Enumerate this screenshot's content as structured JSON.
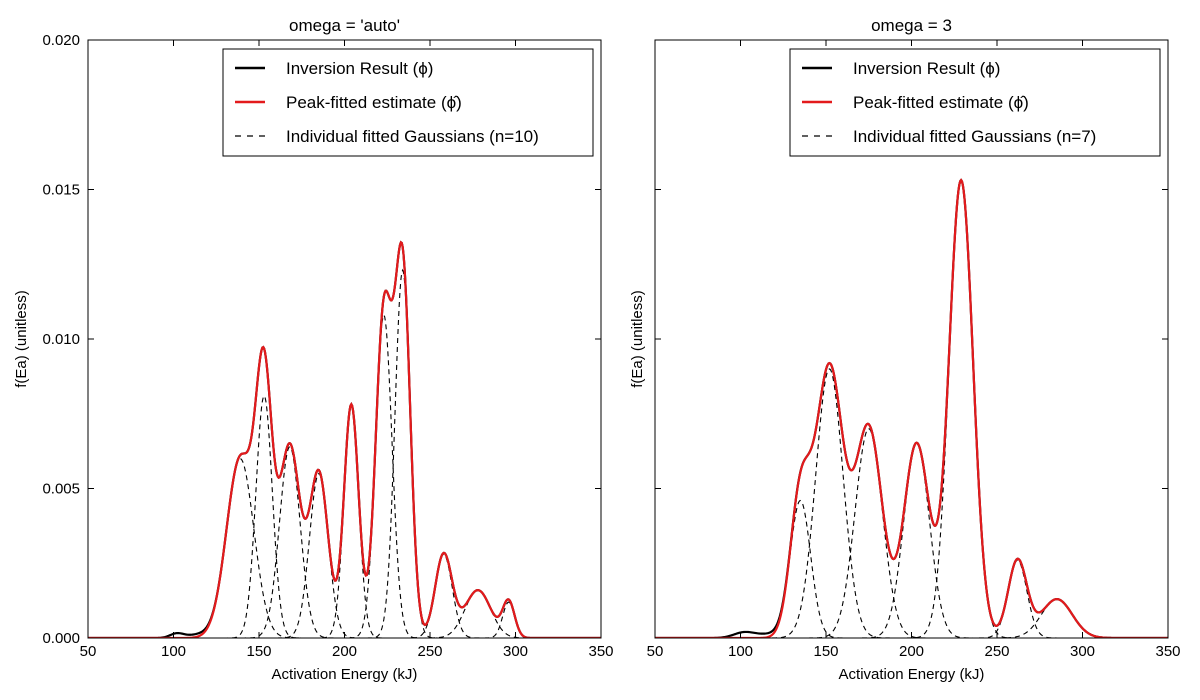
{
  "chart_data": [
    {
      "type": "line",
      "title": "omega = 'auto'",
      "xlabel": "Activation Energy (kJ)",
      "ylabel": "f(Ea) (unitless)",
      "xlim": [
        50,
        350
      ],
      "ylim": [
        0,
        0.02
      ],
      "xticks": [
        "50",
        "100",
        "150",
        "200",
        "250",
        "300",
        "350"
      ],
      "yticks": [
        "0.000",
        "0.005",
        "0.010",
        "0.015",
        "0.020"
      ],
      "show_ytick_labels": true,
      "grid": false,
      "legend_position": "top-right",
      "legend": [
        {
          "label": "Inversion Result (ϕ)",
          "style": "solid",
          "color": "#000000"
        },
        {
          "label": "Peak-fitted estimate (ϕ̂)",
          "style": "solid",
          "color": "#e31a1c"
        },
        {
          "label": "Individual fitted Gaussians (n=10)",
          "style": "dashed",
          "color": "#000000"
        }
      ],
      "gaussians": [
        {
          "mu": 139,
          "sigma": 8.0,
          "amp": 0.006
        },
        {
          "mu": 153,
          "sigma": 4.8,
          "amp": 0.0081
        },
        {
          "mu": 168,
          "sigma": 6.0,
          "amp": 0.0064
        },
        {
          "mu": 185,
          "sigma": 5.5,
          "amp": 0.0055
        },
        {
          "mu": 204,
          "sigma": 4.3,
          "amp": 0.0078
        },
        {
          "mu": 223,
          "sigma": 4.8,
          "amp": 0.0108
        },
        {
          "mu": 234,
          "sigma": 4.5,
          "amp": 0.0123
        },
        {
          "mu": 258,
          "sigma": 5.0,
          "amp": 0.0028
        },
        {
          "mu": 278,
          "sigma": 7.5,
          "amp": 0.0016
        },
        {
          "mu": 296,
          "sigma": 3.5,
          "amp": 0.0012
        }
      ],
      "inversion_extra": [
        {
          "mu": 102,
          "sigma": 4,
          "amp": 0.00015
        },
        {
          "mu": 114,
          "sigma": 6,
          "amp": 0.0001
        }
      ]
    },
    {
      "type": "line",
      "title": "omega = 3",
      "xlabel": "Activation Energy (kJ)",
      "ylabel": "f(Ea) (unitless)",
      "xlim": [
        50,
        350
      ],
      "ylim": [
        0,
        0.02
      ],
      "xticks": [
        "50",
        "100",
        "150",
        "200",
        "250",
        "300",
        "350"
      ],
      "yticks": [
        "",
        "",
        "",
        "",
        ""
      ],
      "show_ytick_labels": false,
      "grid": false,
      "legend_position": "top-right",
      "legend": [
        {
          "label": "Inversion Result (ϕ)",
          "style": "solid",
          "color": "#000000"
        },
        {
          "label": "Peak-fitted estimate (ϕ̂)",
          "style": "solid",
          "color": "#e31a1c"
        },
        {
          "label": "Individual fitted Gaussians (n=7)",
          "style": "dashed",
          "color": "#000000"
        }
      ],
      "gaussians": [
        {
          "mu": 135,
          "sigma": 6.0,
          "amp": 0.0046
        },
        {
          "mu": 152,
          "sigma": 8.0,
          "amp": 0.009
        },
        {
          "mu": 175,
          "sigma": 8.0,
          "amp": 0.007
        },
        {
          "mu": 203,
          "sigma": 7.5,
          "amp": 0.0065
        },
        {
          "mu": 229,
          "sigma": 7.0,
          "amp": 0.0153
        },
        {
          "mu": 262,
          "sigma": 5.5,
          "amp": 0.0026
        },
        {
          "mu": 285,
          "sigma": 9.0,
          "amp": 0.0013
        }
      ],
      "inversion_extra": [
        {
          "mu": 102,
          "sigma": 6,
          "amp": 0.00018
        },
        {
          "mu": 117,
          "sigma": 8,
          "amp": 0.00012
        }
      ]
    }
  ]
}
